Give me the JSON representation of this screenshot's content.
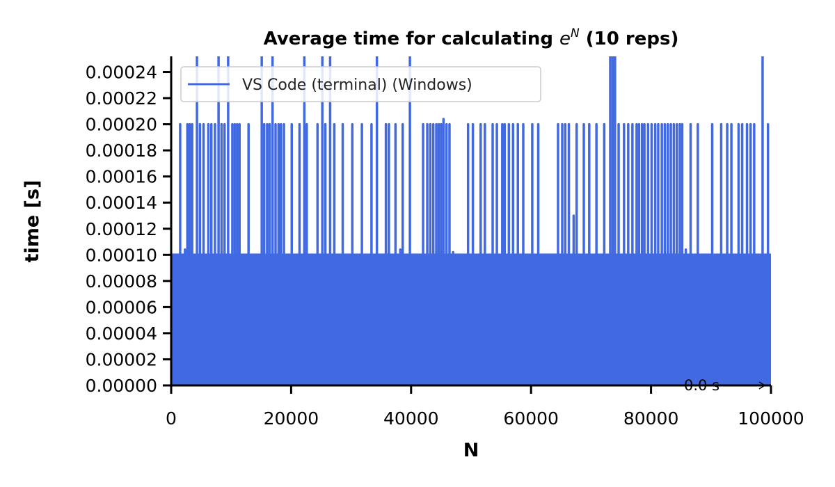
{
  "chart_data": {
    "type": "line",
    "title_prefix": "Average time for calculating ",
    "title_base": "e",
    "title_sup": "N",
    "title_suffix": " (10 reps)",
    "xlabel": "N",
    "ylabel": "time [s]",
    "xlim": [
      0,
      100000
    ],
    "ylim": [
      0,
      0.000252
    ],
    "xticks": [
      0,
      20000,
      40000,
      60000,
      80000,
      100000
    ],
    "xtick_labels": [
      "0",
      "20000",
      "40000",
      "60000",
      "80000",
      "100000"
    ],
    "yticks": [
      0,
      2e-05,
      4e-05,
      6e-05,
      8e-05,
      0.0001,
      0.00012,
      0.00014,
      0.00016,
      0.00018,
      0.0002,
      0.00022,
      0.00024
    ],
    "ytick_labels": [
      "0.00000",
      "0.00002",
      "0.00004",
      "0.00006",
      "0.00008",
      "0.00010",
      "0.00012",
      "0.00014",
      "0.00016",
      "0.00018",
      "0.00020",
      "0.00022",
      "0.00024"
    ],
    "grid": false,
    "legend_position": "top-left",
    "annotation": "0.0 s",
    "series": [
      {
        "name": "VS Code (terminal) (Windows)",
        "color": "#4169e1",
        "baseline_upper": 0.000101,
        "spikes": [
          {
            "x": 1500,
            "y": 0.0002
          },
          {
            "x": 2300,
            "y": 0.000104
          },
          {
            "x": 2700,
            "y": 0.0002
          },
          {
            "x": 3100,
            "y": 0.0002
          },
          {
            "x": 3500,
            "y": 0.0002
          },
          {
            "x": 4300,
            "y": 0.00026
          },
          {
            "x": 4800,
            "y": 0.0002
          },
          {
            "x": 5400,
            "y": 0.0002
          },
          {
            "x": 6200,
            "y": 0.0002
          },
          {
            "x": 6700,
            "y": 0.0002
          },
          {
            "x": 7300,
            "y": 0.0002
          },
          {
            "x": 7900,
            "y": 0.00026
          },
          {
            "x": 8400,
            "y": 0.0002
          },
          {
            "x": 8900,
            "y": 0.0002
          },
          {
            "x": 9500,
            "y": 0.00026
          },
          {
            "x": 10200,
            "y": 0.0002
          },
          {
            "x": 10600,
            "y": 0.0002
          },
          {
            "x": 11000,
            "y": 0.0002
          },
          {
            "x": 11400,
            "y": 0.0002
          },
          {
            "x": 12900,
            "y": 0.0002
          },
          {
            "x": 15100,
            "y": 0.00026
          },
          {
            "x": 15500,
            "y": 0.0002
          },
          {
            "x": 16000,
            "y": 0.0002
          },
          {
            "x": 16400,
            "y": 0.0002
          },
          {
            "x": 16900,
            "y": 0.00026
          },
          {
            "x": 17400,
            "y": 0.0002
          },
          {
            "x": 17900,
            "y": 0.0002
          },
          {
            "x": 18300,
            "y": 0.0002
          },
          {
            "x": 18800,
            "y": 0.0002
          },
          {
            "x": 20100,
            "y": 0.0002
          },
          {
            "x": 21400,
            "y": 0.0002
          },
          {
            "x": 22200,
            "y": 0.00026
          },
          {
            "x": 22600,
            "y": 0.0002
          },
          {
            "x": 24400,
            "y": 0.0002
          },
          {
            "x": 25200,
            "y": 0.00026
          },
          {
            "x": 25700,
            "y": 0.0002
          },
          {
            "x": 26500,
            "y": 0.00026
          },
          {
            "x": 27200,
            "y": 0.0002
          },
          {
            "x": 28600,
            "y": 0.0002
          },
          {
            "x": 30200,
            "y": 0.0002
          },
          {
            "x": 31800,
            "y": 0.0002
          },
          {
            "x": 33400,
            "y": 0.0002
          },
          {
            "x": 34300,
            "y": 0.00026
          },
          {
            "x": 35800,
            "y": 0.0002
          },
          {
            "x": 36300,
            "y": 0.0002
          },
          {
            "x": 37400,
            "y": 0.0002
          },
          {
            "x": 38200,
            "y": 0.000104
          },
          {
            "x": 38600,
            "y": 0.0002
          },
          {
            "x": 39800,
            "y": 0.00026
          },
          {
            "x": 42000,
            "y": 0.0002
          },
          {
            "x": 42700,
            "y": 0.0002
          },
          {
            "x": 43200,
            "y": 0.0002
          },
          {
            "x": 43700,
            "y": 0.0002
          },
          {
            "x": 44200,
            "y": 0.0002
          },
          {
            "x": 44600,
            "y": 0.0002
          },
          {
            "x": 45000,
            "y": 0.0002
          },
          {
            "x": 45400,
            "y": 0.000204
          },
          {
            "x": 45900,
            "y": 0.0002
          },
          {
            "x": 46400,
            "y": 0.0002
          },
          {
            "x": 47000,
            "y": 0.000102
          },
          {
            "x": 49500,
            "y": 0.0002
          },
          {
            "x": 50300,
            "y": 0.0002
          },
          {
            "x": 51600,
            "y": 0.0002
          },
          {
            "x": 52300,
            "y": 0.0002
          },
          {
            "x": 53600,
            "y": 0.0002
          },
          {
            "x": 54300,
            "y": 0.0002
          },
          {
            "x": 55200,
            "y": 0.0002
          },
          {
            "x": 55600,
            "y": 0.0002
          },
          {
            "x": 56300,
            "y": 0.0002
          },
          {
            "x": 57000,
            "y": 0.0002
          },
          {
            "x": 57800,
            "y": 0.0002
          },
          {
            "x": 58700,
            "y": 0.0002
          },
          {
            "x": 60200,
            "y": 0.0002
          },
          {
            "x": 61200,
            "y": 0.0002
          },
          {
            "x": 64500,
            "y": 0.0002
          },
          {
            "x": 65200,
            "y": 0.0002
          },
          {
            "x": 65700,
            "y": 0.0002
          },
          {
            "x": 66300,
            "y": 0.0002
          },
          {
            "x": 67100,
            "y": 0.00013
          },
          {
            "x": 67600,
            "y": 0.0002
          },
          {
            "x": 68800,
            "y": 0.0002
          },
          {
            "x": 69700,
            "y": 0.0002
          },
          {
            "x": 70900,
            "y": 0.0002
          },
          {
            "x": 72200,
            "y": 0.0002
          },
          {
            "x": 73200,
            "y": 0.00026
          },
          {
            "x": 73600,
            "y": 0.00026
          },
          {
            "x": 74000,
            "y": 0.00026
          },
          {
            "x": 74600,
            "y": 0.0002
          },
          {
            "x": 75500,
            "y": 0.0002
          },
          {
            "x": 76200,
            "y": 0.0002
          },
          {
            "x": 76900,
            "y": 0.0002
          },
          {
            "x": 77600,
            "y": 0.0002
          },
          {
            "x": 78000,
            "y": 0.0002
          },
          {
            "x": 78500,
            "y": 0.0002
          },
          {
            "x": 78900,
            "y": 0.0002
          },
          {
            "x": 79500,
            "y": 0.0002
          },
          {
            "x": 80100,
            "y": 0.0002
          },
          {
            "x": 80700,
            "y": 0.0002
          },
          {
            "x": 81200,
            "y": 0.0002
          },
          {
            "x": 81800,
            "y": 0.0002
          },
          {
            "x": 82300,
            "y": 0.0002
          },
          {
            "x": 82800,
            "y": 0.0002
          },
          {
            "x": 83300,
            "y": 0.0002
          },
          {
            "x": 83800,
            "y": 0.0002
          },
          {
            "x": 84300,
            "y": 0.0002
          },
          {
            "x": 84800,
            "y": 0.0002
          },
          {
            "x": 85200,
            "y": 0.0002
          },
          {
            "x": 85800,
            "y": 0.000104
          },
          {
            "x": 86600,
            "y": 0.0002
          },
          {
            "x": 87800,
            "y": 0.0002
          },
          {
            "x": 90200,
            "y": 0.0002
          },
          {
            "x": 91700,
            "y": 0.0002
          },
          {
            "x": 92700,
            "y": 0.0002
          },
          {
            "x": 93400,
            "y": 0.0002
          },
          {
            "x": 94600,
            "y": 0.0002
          },
          {
            "x": 95200,
            "y": 0.0002
          },
          {
            "x": 96000,
            "y": 0.0002
          },
          {
            "x": 96600,
            "y": 0.0002
          },
          {
            "x": 97200,
            "y": 0.0002
          },
          {
            "x": 98600,
            "y": 0.00026
          },
          {
            "x": 99500,
            "y": 0.0002
          }
        ]
      }
    ]
  }
}
